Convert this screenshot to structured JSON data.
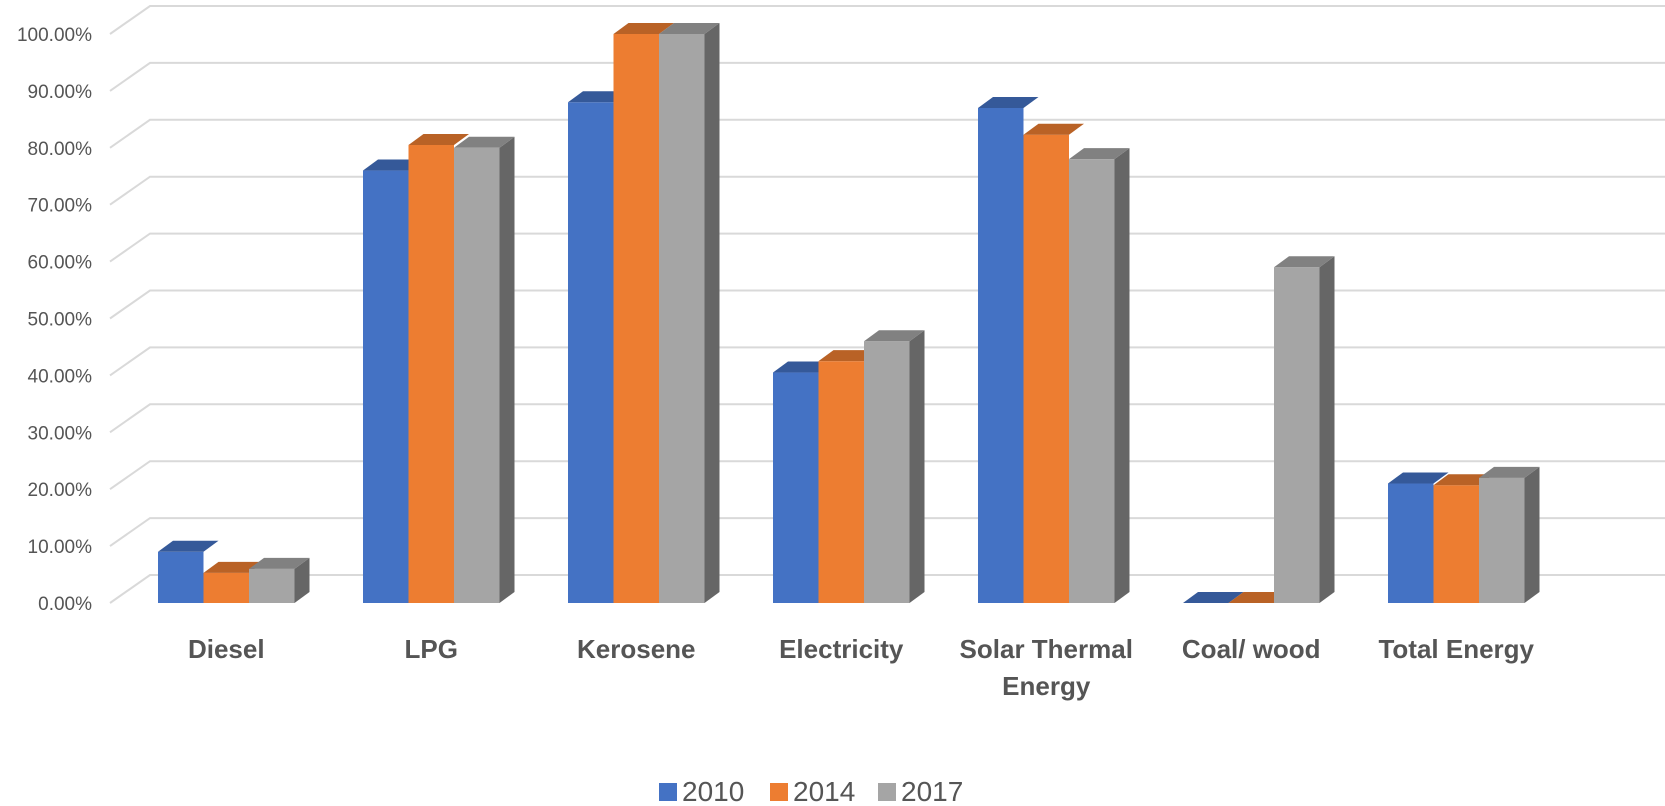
{
  "chart_data": {
    "type": "bar",
    "title": "",
    "xlabel": "",
    "ylabel": "",
    "categories": [
      "Diesel",
      "LPG",
      "Kerosene",
      "Electricity",
      "Solar Thermal Energy",
      "Coal/ wood",
      "Total Energy"
    ],
    "category_lines": [
      [
        "Diesel"
      ],
      [
        "LPG"
      ],
      [
        "Kerosene"
      ],
      [
        "Electricity"
      ],
      [
        "Solar Thermal",
        "Energy"
      ],
      [
        "Coal/ wood"
      ],
      [
        "Total Energy"
      ]
    ],
    "series": [
      {
        "name": "2010",
        "color": "#4472C4",
        "values": [
          9.0,
          76.0,
          88.0,
          40.5,
          87.0,
          0.0,
          21.0
        ]
      },
      {
        "name": "2014",
        "color": "#ED7D31",
        "values": [
          5.3,
          80.5,
          100.0,
          42.5,
          82.3,
          0.0,
          20.7
        ]
      },
      {
        "name": "2017",
        "color": "#A5A5A5",
        "values": [
          6.0,
          80.0,
          100.0,
          46.0,
          78.0,
          59.0,
          22.0
        ]
      }
    ],
    "ylim": [
      0,
      100
    ],
    "y_ticks": [
      "0.00%",
      "10.00%",
      "20.00%",
      "30.00%",
      "40.00%",
      "50.00%",
      "60.00%",
      "70.00%",
      "80.00%",
      "90.00%",
      "100.00%"
    ],
    "grid": true,
    "legend_position": "bottom",
    "style": "3d-clustered-column"
  }
}
